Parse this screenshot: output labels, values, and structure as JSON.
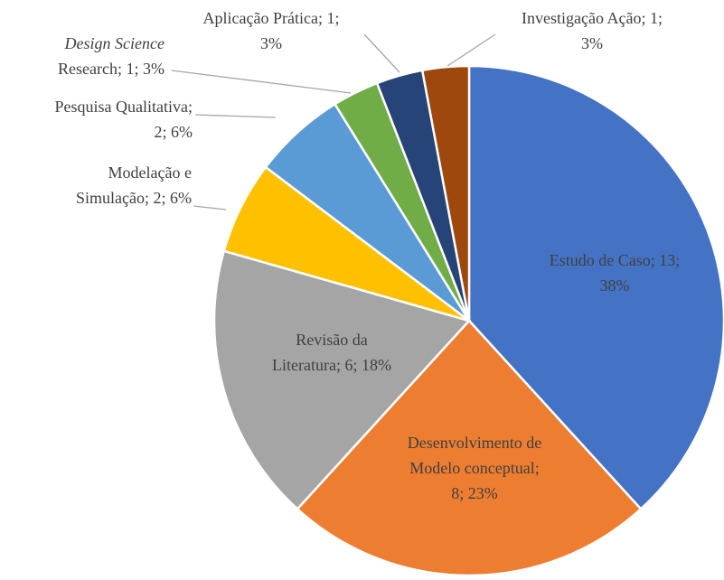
{
  "chart_data": {
    "type": "pie",
    "categories": [
      "Estudo de Caso",
      "Desenvolvimento de Modelo conceptual",
      "Revisão da Literatura",
      "Modelação e Simulação",
      "Pesquisa Qualitativa",
      "Design Science Research",
      "Aplicação Prática",
      "Investigação Ação"
    ],
    "values": [
      13,
      8,
      6,
      2,
      2,
      1,
      1,
      1
    ],
    "value_labels": [
      [
        "Estudo de Caso; 13;",
        "38%"
      ],
      [
        "Desenvolvimento de",
        "Modelo conceptual;",
        "8; 23%"
      ],
      [
        "Revisão da",
        "Literatura; 6; 18%"
      ],
      [
        "Modelação e",
        "Simulação; 2; 6%"
      ],
      [
        "Pesquisa Qualitativa;",
        "2; 6%"
      ],
      [
        "Design Science",
        "Research; 1; 3%"
      ],
      [
        "Aplicação Prática; 1;",
        "3%"
      ],
      [
        "Investigação Ação; 1;",
        "3%"
      ]
    ],
    "colors": [
      "#4472c4",
      "#ed7d31",
      "#a5a5a5",
      "#ffc000",
      "#5b9bd5",
      "#70ad47",
      "#264478",
      "#9e480e"
    ]
  }
}
